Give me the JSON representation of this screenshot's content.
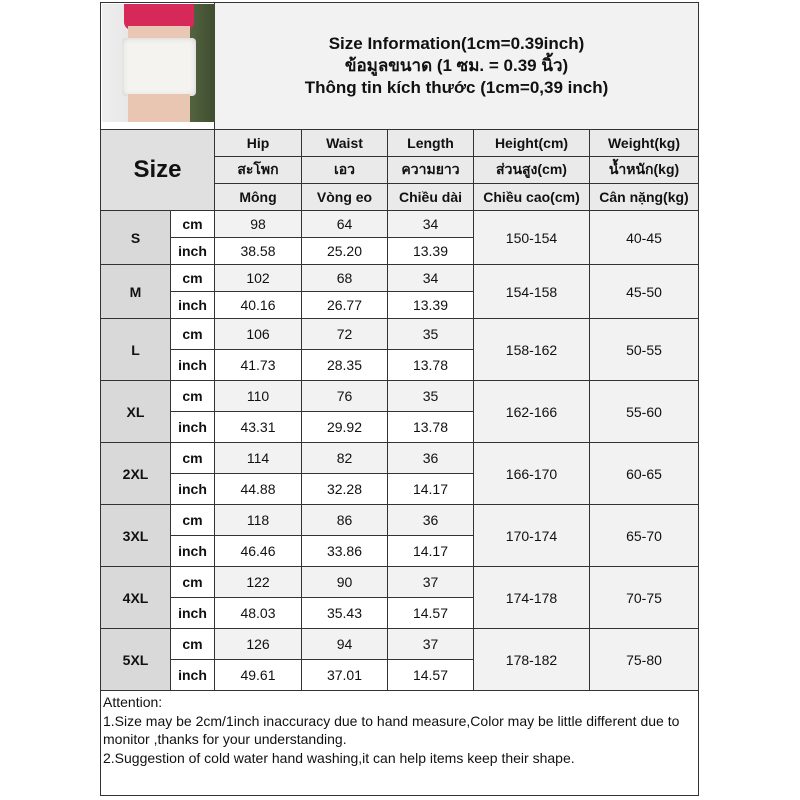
{
  "title": {
    "line1": "Size Information(1cm=0.39inch)",
    "line2": "ข้อมูลขนาด (1 ซม. = 0.39 นิ้ว)",
    "line3": "Thông tin kích thước (1cm=0,39 inch)"
  },
  "size_header": "Size",
  "columns": [
    {
      "en": "Hip",
      "th": "สะโพก",
      "vi": "Mông"
    },
    {
      "en": "Waist",
      "th": "เอว",
      "vi": "Vòng eo"
    },
    {
      "en": "Length",
      "th": "ความยาว",
      "vi": "Chiều dài"
    },
    {
      "en": "Height(cm)",
      "th": "ส่วนสูง(cm)",
      "vi": "Chiều cao(cm)"
    },
    {
      "en": "Weight(kg)",
      "th": "น้ำหนัก(kg)",
      "vi": "Cân nặng(kg)"
    }
  ],
  "units": {
    "cm": "cm",
    "inch": "inch"
  },
  "sizes": [
    {
      "size": "S",
      "cm": [
        "98",
        "64",
        "34"
      ],
      "inch": [
        "38.58",
        "25.20",
        "13.39"
      ],
      "height": "150-154",
      "weight": "40-45"
    },
    {
      "size": "M",
      "cm": [
        "102",
        "68",
        "34"
      ],
      "inch": [
        "40.16",
        "26.77",
        "13.39"
      ],
      "height": "154-158",
      "weight": "45-50"
    },
    {
      "size": "L",
      "cm": [
        "106",
        "72",
        "35"
      ],
      "inch": [
        "41.73",
        "28.35",
        "13.78"
      ],
      "height": "158-162",
      "weight": "50-55"
    },
    {
      "size": "XL",
      "cm": [
        "110",
        "76",
        "35"
      ],
      "inch": [
        "43.31",
        "29.92",
        "13.78"
      ],
      "height": "162-166",
      "weight": "55-60"
    },
    {
      "size": "2XL",
      "cm": [
        "114",
        "82",
        "36"
      ],
      "inch": [
        "44.88",
        "32.28",
        "14.17"
      ],
      "height": "166-170",
      "weight": "60-65"
    },
    {
      "size": "3XL",
      "cm": [
        "118",
        "86",
        "36"
      ],
      "inch": [
        "46.46",
        "33.86",
        "14.17"
      ],
      "height": "170-174",
      "weight": "65-70"
    },
    {
      "size": "4XL",
      "cm": [
        "122",
        "90",
        "37"
      ],
      "inch": [
        "48.03",
        "35.43",
        "14.57"
      ],
      "height": "174-178",
      "weight": "70-75"
    },
    {
      "size": "5XL",
      "cm": [
        "126",
        "94",
        "37"
      ],
      "inch": [
        "49.61",
        "37.01",
        "14.57"
      ],
      "height": "178-182",
      "weight": "75-80"
    }
  ],
  "notes": {
    "heading": "Attention:",
    "line1": "1.Size may be 2cm/1inch inaccuracy due to hand measure,Color may be little different due to monitor ,thanks for your understanding.",
    "line2": "2.Suggestion of cold water hand washing,it can help items keep their shape."
  }
}
